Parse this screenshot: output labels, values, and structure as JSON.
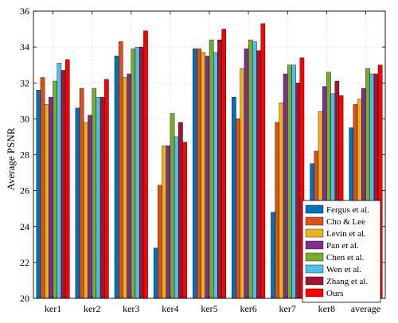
{
  "chart_data": {
    "type": "bar",
    "ylabel": "Average PSNR",
    "xlabel": "",
    "title": "",
    "ylim": [
      20,
      36
    ],
    "yticks": [
      20,
      22,
      24,
      26,
      28,
      30,
      32,
      34,
      36
    ],
    "grid": true,
    "legend_position": "bottom-right",
    "categories": [
      "ker1",
      "ker2",
      "ker3",
      "ker4",
      "ker5",
      "ker6",
      "ker7",
      "ker8",
      "average"
    ],
    "series": [
      {
        "name": "Fergus et al.",
        "color": "#0072BD",
        "values": [
          31.6,
          30.6,
          33.5,
          22.8,
          33.9,
          31.2,
          24.8,
          27.5,
          29.5
        ]
      },
      {
        "name": "Cho & Lee",
        "color": "#D95319",
        "values": [
          32.3,
          31.7,
          34.3,
          26.3,
          33.9,
          30.0,
          29.8,
          28.2,
          30.8
        ]
      },
      {
        "name": "Levin et al.",
        "color": "#EDB120",
        "values": [
          30.8,
          29.8,
          32.3,
          28.5,
          33.7,
          32.8,
          30.9,
          30.4,
          31.1
        ]
      },
      {
        "name": "Pan et al.",
        "color": "#7E2F8E",
        "values": [
          31.2,
          30.2,
          32.5,
          28.5,
          33.5,
          33.9,
          32.5,
          31.8,
          31.7
        ]
      },
      {
        "name": "Chen et al.",
        "color": "#77AC30",
        "values": [
          32.1,
          31.7,
          33.9,
          30.3,
          34.4,
          34.4,
          33.0,
          32.6,
          32.8
        ]
      },
      {
        "name": "Wen et al.",
        "color": "#4DBEEE",
        "values": [
          33.1,
          31.2,
          34.0,
          29.0,
          33.7,
          34.3,
          33.0,
          31.4,
          32.5
        ]
      },
      {
        "name": "Zhang et al.",
        "color": "#A2142F",
        "values": [
          32.7,
          31.2,
          34.0,
          29.8,
          34.4,
          33.8,
          32.0,
          32.1,
          32.5
        ]
      },
      {
        "name": "Ours",
        "color": "#FF0000",
        "values": [
          33.3,
          32.2,
          34.9,
          28.7,
          35.0,
          35.3,
          33.4,
          31.3,
          33.0
        ]
      }
    ]
  }
}
